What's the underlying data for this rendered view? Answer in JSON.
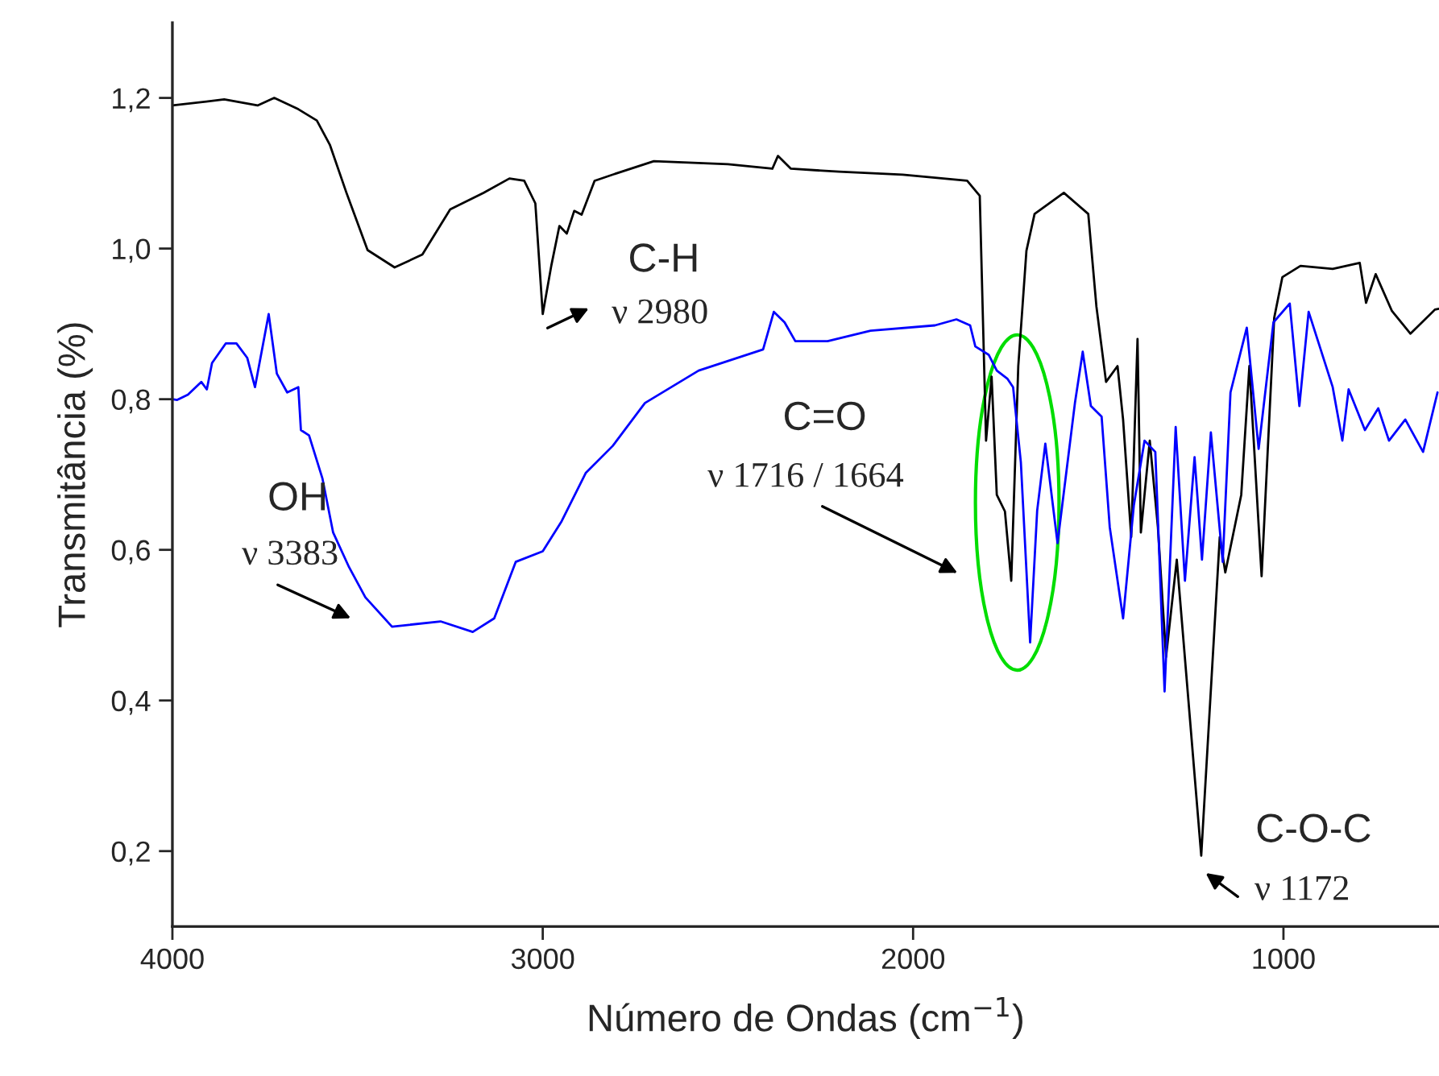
{
  "chart_data": {
    "type": "line",
    "xlabel": "Número de Ondas (cm$^{−1}$)",
    "ylabel": "Transmitância (%)",
    "xlim": [
      4000,
      580
    ],
    "ylim": [
      0.1,
      1.3
    ],
    "xticks": [
      4000,
      3000,
      2000,
      1000
    ],
    "yticks": [
      {
        "value": 0.2,
        "label": "0,2"
      },
      {
        "value": 0.4,
        "label": "0,4"
      },
      {
        "value": 0.6,
        "label": "0,6"
      },
      {
        "value": 0.8,
        "label": "0,8"
      },
      {
        "value": 1.0,
        "label": "1,0"
      },
      {
        "value": 1.2,
        "label": "1,2"
      }
    ],
    "grid": false,
    "legend": false,
    "series": [
      {
        "color": "#000000",
        "x": [
          4000,
          3860,
          3770,
          3725,
          3660,
          3610,
          3575,
          3530,
          3473,
          3400,
          3325,
          3250,
          3160,
          3090,
          3050,
          3020,
          3000,
          2977,
          2955,
          2935,
          2915,
          2895,
          2860,
          2800,
          2700,
          2500,
          2380,
          2365,
          2330,
          2200,
          2028,
          1854,
          1820,
          1803,
          1788,
          1774,
          1752,
          1735,
          1716,
          1694,
          1672,
          1593,
          1527,
          1505,
          1479,
          1448,
          1433,
          1411,
          1394,
          1385,
          1361,
          1339,
          1317,
          1288,
          1222,
          1172,
          1157,
          1114,
          1092,
          1059,
          1025,
          1003,
          954,
          867,
          794,
          777,
          751,
          707,
          657,
          591,
          580
        ],
        "values": [
          1.19,
          1.198,
          1.19,
          1.2,
          1.185,
          1.17,
          1.138,
          1.074,
          0.998,
          0.975,
          0.992,
          1.052,
          1.074,
          1.093,
          1.09,
          1.06,
          0.913,
          0.977,
          1.03,
          1.02,
          1.05,
          1.045,
          1.09,
          1.1,
          1.116,
          1.112,
          1.106,
          1.123,
          1.106,
          1.102,
          1.098,
          1.09,
          1.07,
          0.745,
          0.83,
          0.673,
          0.651,
          0.559,
          0.844,
          0.997,
          1.046,
          1.074,
          1.046,
          0.923,
          0.823,
          0.844,
          0.773,
          0.617,
          0.88,
          0.623,
          0.745,
          0.63,
          0.458,
          0.587,
          0.194,
          0.617,
          0.57,
          0.673,
          0.844,
          0.565,
          0.908,
          0.962,
          0.977,
          0.973,
          0.981,
          0.928,
          0.966,
          0.917,
          0.887,
          0.919,
          0.92
        ]
      },
      {
        "color": "#0000ff",
        "x": [
          4000,
          3987,
          3958,
          3922,
          3907,
          3893,
          3856,
          3827,
          3798,
          3777,
          3740,
          3718,
          3690,
          3660,
          3653,
          3631,
          3595,
          3566,
          3523,
          3479,
          3407,
          3276,
          3189,
          3131,
          3073,
          3000,
          2949,
          2884,
          2811,
          2724,
          2579,
          2405,
          2376,
          2347,
          2318,
          2231,
          2115,
          1941,
          1883,
          1846,
          1832,
          1796,
          1774,
          1745,
          1730,
          1709,
          1684,
          1665,
          1643,
          1610,
          1563,
          1542,
          1520,
          1491,
          1469,
          1433,
          1404,
          1375,
          1346,
          1321,
          1291,
          1266,
          1240,
          1220,
          1196,
          1164,
          1143,
          1099,
          1067,
          1027,
          983,
          957,
          932,
          867,
          841,
          824,
          780,
          744,
          715,
          671,
          623,
          584
        ],
        "values": [
          0.8,
          0.799,
          0.806,
          0.823,
          0.813,
          0.848,
          0.874,
          0.874,
          0.855,
          0.816,
          0.913,
          0.834,
          0.809,
          0.816,
          0.759,
          0.752,
          0.695,
          0.623,
          0.577,
          0.537,
          0.498,
          0.505,
          0.491,
          0.509,
          0.584,
          0.598,
          0.638,
          0.702,
          0.738,
          0.795,
          0.838,
          0.866,
          0.916,
          0.902,
          0.877,
          0.877,
          0.891,
          0.898,
          0.906,
          0.898,
          0.87,
          0.859,
          0.838,
          0.827,
          0.816,
          0.716,
          0.477,
          0.652,
          0.741,
          0.609,
          0.795,
          0.863,
          0.791,
          0.777,
          0.63,
          0.509,
          0.659,
          0.745,
          0.73,
          0.412,
          0.763,
          0.559,
          0.723,
          0.587,
          0.756,
          0.584,
          0.809,
          0.895,
          0.734,
          0.902,
          0.927,
          0.791,
          0.916,
          0.816,
          0.745,
          0.813,
          0.759,
          0.788,
          0.745,
          0.773,
          0.73,
          0.809
        ]
      }
    ],
    "annotations": [
      "C-H",
      "ν 2980",
      "OH",
      "ν 3383",
      "C=O",
      "ν 1716 / 1664",
      "C-O-C",
      "ν 1172"
    ]
  }
}
